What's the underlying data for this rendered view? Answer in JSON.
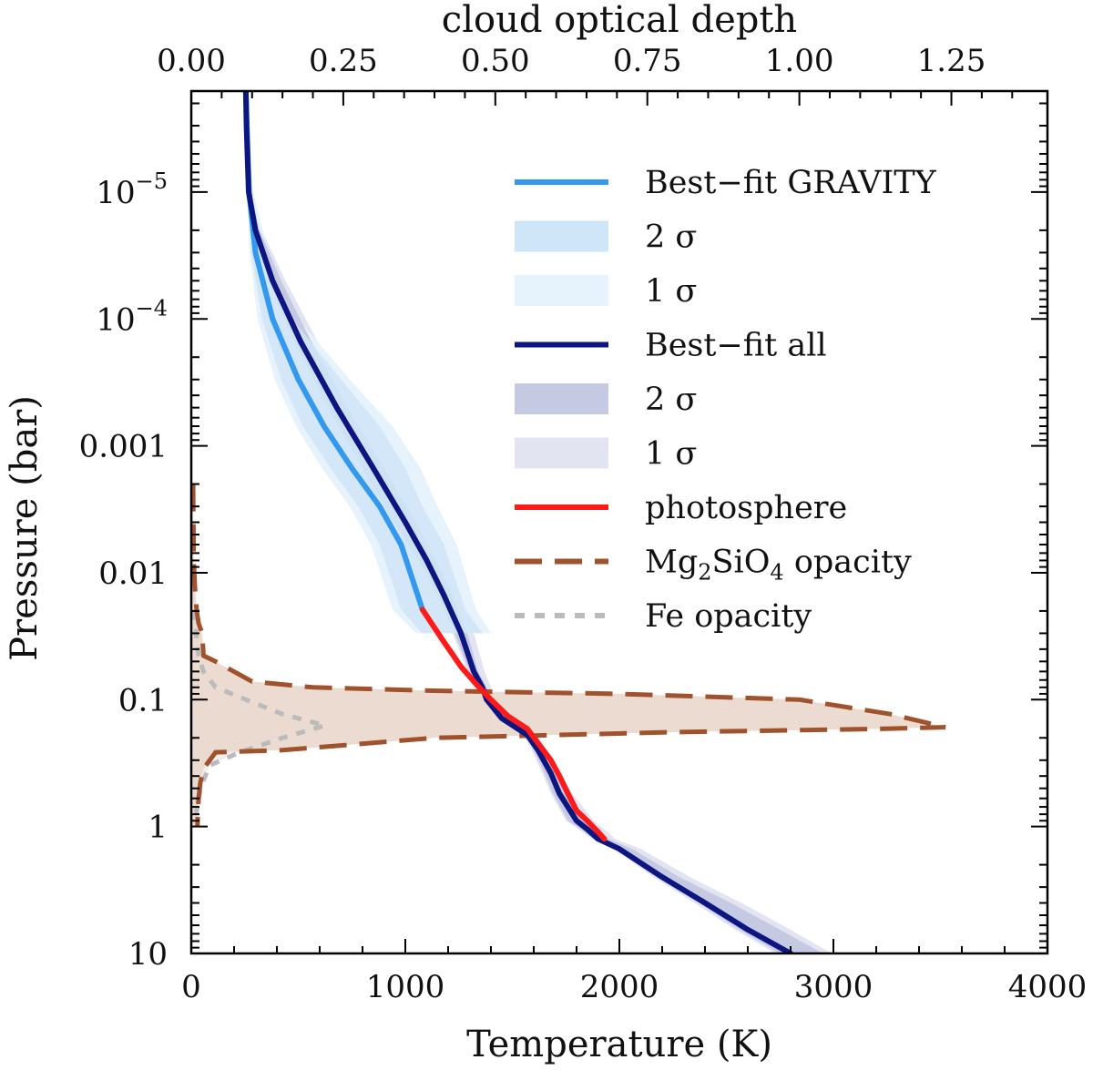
{
  "chart_data": {
    "type": "line",
    "title": "",
    "xlabel": "Temperature (K)",
    "x2label": "cloud optical depth",
    "ylabel": "Pressure (bar)",
    "xlim": [
      0,
      4000
    ],
    "x2lim": [
      0,
      1.408
    ],
    "ylim_log_bar": [
      1.6e-06,
      10
    ],
    "y_scale": "log",
    "y_inverted": true,
    "x_ticks": [
      0,
      1000,
      2000,
      3000,
      4000
    ],
    "x_tick_labels": [
      "0",
      "1000",
      "2000",
      "3000",
      "4000"
    ],
    "x2_ticks": [
      0.0,
      0.25,
      0.5,
      0.75,
      1.0,
      1.25
    ],
    "x2_tick_labels": [
      "0.00",
      "0.25",
      "0.50",
      "0.75",
      "1.00",
      "1.25"
    ],
    "y_ticks": [
      1e-05,
      0.0001,
      0.001,
      0.01,
      0.1,
      1,
      10
    ],
    "y_tick_labels": [
      {
        "base": "10",
        "exp": "−5"
      },
      {
        "base": "10",
        "exp": "−4"
      },
      {
        "base": "0.001",
        "exp": ""
      },
      {
        "base": "0.01",
        "exp": ""
      },
      {
        "base": "0.1",
        "exp": ""
      },
      {
        "base": "1",
        "exp": ""
      },
      {
        "base": "10",
        "exp": ""
      }
    ],
    "colors": {
      "gravity": "#3399ee",
      "gravity_2sigma": "#cfe5f8",
      "gravity_1sigma": "#e6f2fc",
      "all": "#0d1680",
      "all_2sigma": "#c5c9e2",
      "all_1sigma": "#e2e4f2",
      "photosphere": "#ff1a1a",
      "mg2sio4": "#a0522d",
      "mg2sio4_fill": "#ead7cc",
      "fe": "#bbbbbb",
      "fe_fill": "#efefef"
    },
    "series": [
      {
        "name": "Best-fit GRAVITY",
        "temperature_K": [
          255,
          260,
          270,
          300,
          380,
          500,
          620,
          750,
          880,
          980,
          1080
        ],
        "pressure_bar": [
          1.6e-06,
          3e-06,
          1e-05,
          3e-05,
          0.0001,
          0.0003,
          0.0007,
          0.0015,
          0.003,
          0.006,
          0.0195
        ]
      },
      {
        "name": "GRAVITY 2 σ band",
        "temperature_low_K": [
          255,
          260,
          265,
          280,
          330,
          420,
          520,
          650,
          780,
          880,
          980,
          1080
        ],
        "temperature_high_K": [
          255,
          262,
          280,
          340,
          470,
          700,
          880,
          1000,
          1080,
          1180,
          1280,
          1360
        ],
        "pressure_bar": [
          1.6e-06,
          3e-06,
          1e-05,
          3e-05,
          0.0001,
          0.0003,
          0.0007,
          0.0015,
          0.003,
          0.006,
          0.0195,
          0.03
        ]
      },
      {
        "name": "GRAVITY 1 σ band",
        "temperature_low_K": [
          255,
          258,
          262,
          272,
          310,
          390,
          490,
          610,
          740,
          840,
          940,
          1050
        ],
        "temperature_high_K": [
          255,
          262,
          290,
          360,
          500,
          740,
          940,
          1070,
          1150,
          1240,
          1330,
          1400
        ],
        "pressure_bar": [
          1.6e-06,
          3e-06,
          1e-05,
          3e-05,
          0.0001,
          0.0003,
          0.0007,
          0.0015,
          0.003,
          0.006,
          0.0195,
          0.03
        ]
      },
      {
        "name": "Best-fit all",
        "temperature_K": [
          255,
          258,
          268,
          300,
          380,
          510,
          680,
          850,
          1000,
          1100,
          1180,
          1260,
          1320,
          1360,
          1380,
          1450,
          1570,
          1620,
          1680,
          1720,
          1800,
          1850,
          1900,
          2000,
          2200,
          2400,
          2600,
          2800
        ],
        "pressure_bar": [
          1.6e-06,
          3e-06,
          1e-05,
          2e-05,
          5e-05,
          0.00015,
          0.0005,
          0.0015,
          0.004,
          0.008,
          0.015,
          0.03,
          0.06,
          0.08,
          0.1,
          0.14,
          0.19,
          0.25,
          0.38,
          0.55,
          0.9,
          1.05,
          1.25,
          1.5,
          2.5,
          4,
          6.5,
          10
        ]
      },
      {
        "name": "all 2 σ band",
        "temperature_low_K": [
          255,
          258,
          266,
          290,
          360,
          480,
          640,
          800,
          950,
          1060,
          1150,
          1230,
          1300,
          1340,
          1370,
          1440,
          1560,
          1600,
          1650,
          1690,
          1760,
          1820,
          1880,
          1980,
          2170,
          2370,
          2560,
          2750
        ],
        "temperature_high_K": [
          255,
          260,
          275,
          320,
          420,
          560,
          730,
          900,
          1050,
          1140,
          1220,
          1290,
          1340,
          1380,
          1400,
          1460,
          1590,
          1640,
          1700,
          1760,
          1850,
          1900,
          1950,
          2060,
          2280,
          2520,
          2750,
          2950
        ],
        "pressure_bar": [
          1.6e-06,
          3e-06,
          1e-05,
          2e-05,
          5e-05,
          0.00015,
          0.0005,
          0.0015,
          0.004,
          0.008,
          0.015,
          0.03,
          0.06,
          0.08,
          0.1,
          0.14,
          0.19,
          0.25,
          0.38,
          0.55,
          0.9,
          1.05,
          1.25,
          1.5,
          2.5,
          4,
          6.5,
          10
        ]
      },
      {
        "name": "all 1 σ band",
        "temperature_low_K": [
          255,
          258,
          264,
          285,
          350,
          470,
          630,
          790,
          940,
          1050,
          1140,
          1220,
          1290,
          1330,
          1360,
          1430,
          1550,
          1590,
          1640,
          1680,
          1750,
          1810,
          1870,
          1970,
          2160,
          2350,
          2540,
          2730
        ],
        "temperature_high_K": [
          255,
          262,
          280,
          330,
          440,
          590,
          760,
          930,
          1080,
          1170,
          1250,
          1320,
          1370,
          1400,
          1420,
          1480,
          1610,
          1660,
          1720,
          1780,
          1880,
          1930,
          1980,
          2100,
          2330,
          2570,
          2800,
          2990
        ],
        "pressure_bar": [
          1.6e-06,
          3e-06,
          1e-05,
          2e-05,
          5e-05,
          0.00015,
          0.0005,
          0.0015,
          0.004,
          0.008,
          0.015,
          0.03,
          0.06,
          0.08,
          0.1,
          0.14,
          0.19,
          0.25,
          0.38,
          0.55,
          0.9,
          1.05,
          1.25,
          1.5,
          2.5,
          4,
          6.5,
          10
        ]
      },
      {
        "name": "photosphere",
        "temperature_K": [
          1080,
          1180,
          1260,
          1330,
          1400,
          1480,
          1570,
          1620,
          1680,
          1720,
          1760,
          1800,
          1850,
          1900,
          1930
        ],
        "pressure_bar": [
          0.0195,
          0.035,
          0.055,
          0.075,
          0.1,
          0.135,
          0.17,
          0.22,
          0.3,
          0.4,
          0.55,
          0.75,
          0.9,
          1.1,
          1.25
        ]
      },
      {
        "name": "Mg2SiO4 opacity",
        "cloud_optical_depth": [
          0.003,
          0.004,
          0.006,
          0.009,
          0.012,
          0.018,
          0.02,
          0.04,
          0.1,
          0.2,
          0.4,
          0.7,
          1.0,
          1.15,
          1.24,
          1.13,
          0.8,
          0.4,
          0.15,
          0.04,
          0.02,
          0.015,
          0.012,
          0.01
        ],
        "pressure_bar": [
          0.002,
          0.008,
          0.013,
          0.02,
          0.025,
          0.03,
          0.045,
          0.05,
          0.072,
          0.08,
          0.085,
          0.09,
          0.1,
          0.13,
          0.165,
          0.17,
          0.18,
          0.2,
          0.25,
          0.26,
          0.35,
          0.45,
          0.6,
          1.0
        ]
      },
      {
        "name": "Fe opacity",
        "cloud_optical_depth": [
          0.004,
          0.008,
          0.012,
          0.02,
          0.04,
          0.09,
          0.15,
          0.22,
          0.15,
          0.08,
          0.03,
          0.015,
          0.008
        ],
        "pressure_bar": [
          0.02,
          0.03,
          0.045,
          0.06,
          0.08,
          0.1,
          0.13,
          0.16,
          0.2,
          0.26,
          0.33,
          0.5,
          0.8
        ]
      }
    ],
    "legend": {
      "position": "top-right",
      "entries": [
        {
          "label": "Best−fit GRAVITY",
          "kind": "line",
          "color_key": "gravity"
        },
        {
          "label": "2 σ",
          "kind": "box",
          "color_key": "gravity_2sigma"
        },
        {
          "label": "1 σ",
          "kind": "box",
          "color_key": "gravity_1sigma"
        },
        {
          "label": "Best−fit all",
          "kind": "line",
          "color_key": "all"
        },
        {
          "label": "2 σ",
          "kind": "box",
          "color_key": "all_2sigma"
        },
        {
          "label": "1 σ",
          "kind": "box",
          "color_key": "all_1sigma"
        },
        {
          "label": "photosphere",
          "kind": "line",
          "color_key": "photosphere"
        },
        {
          "label": "Mg",
          "sub1": "2",
          "mid": "SiO",
          "sub2": "4",
          "tail": " opacity",
          "kind": "dash",
          "color_key": "mg2sio4"
        },
        {
          "label": "Fe opacity",
          "kind": "dot",
          "color_key": "fe"
        }
      ]
    }
  }
}
